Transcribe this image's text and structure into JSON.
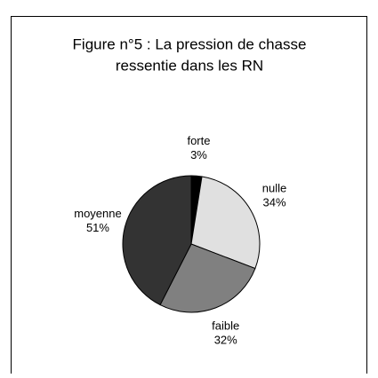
{
  "chart_data": {
    "type": "pie",
    "title": [
      "Figure n°5 : La pression de chasse",
      "ressentie dans les RN"
    ],
    "categories": [
      "forte",
      "nulle",
      "faible",
      "moyenne"
    ],
    "values": [
      3,
      34,
      32,
      51
    ],
    "value_labels": [
      "3%",
      "34%",
      "32%",
      "51%"
    ],
    "colors": [
      "#000000",
      "#e0e0e0",
      "#808080",
      "#333333"
    ]
  }
}
